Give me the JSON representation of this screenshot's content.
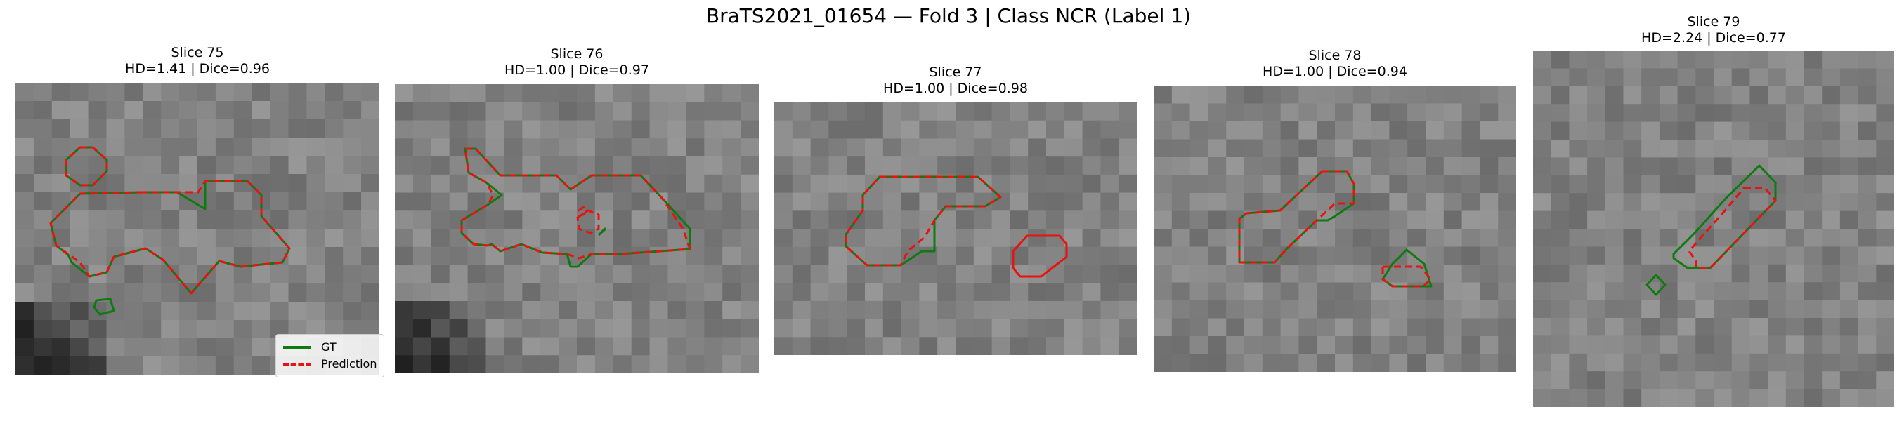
{
  "figure": {
    "title": "BraTS2021_01654 — Fold 3 | Class NCR (Label 1)"
  },
  "legend": {
    "gt_label": "GT",
    "pred_label": "Prediction"
  },
  "colors": {
    "gt": "#0f7a0f",
    "prediction": "#e8120e"
  },
  "panels": [
    {
      "slice": "Slice 75",
      "metrics": "HD=1.41 | Dice=0.96"
    },
    {
      "slice": "Slice 76",
      "metrics": "HD=1.00 | Dice=0.97"
    },
    {
      "slice": "Slice 77",
      "metrics": "HD=1.00 | Dice=0.98"
    },
    {
      "slice": "Slice 78",
      "metrics": "HD=1.00 | Dice=0.94"
    },
    {
      "slice": "Slice 79",
      "metrics": "HD=2.24 | Dice=0.77"
    }
  ]
}
